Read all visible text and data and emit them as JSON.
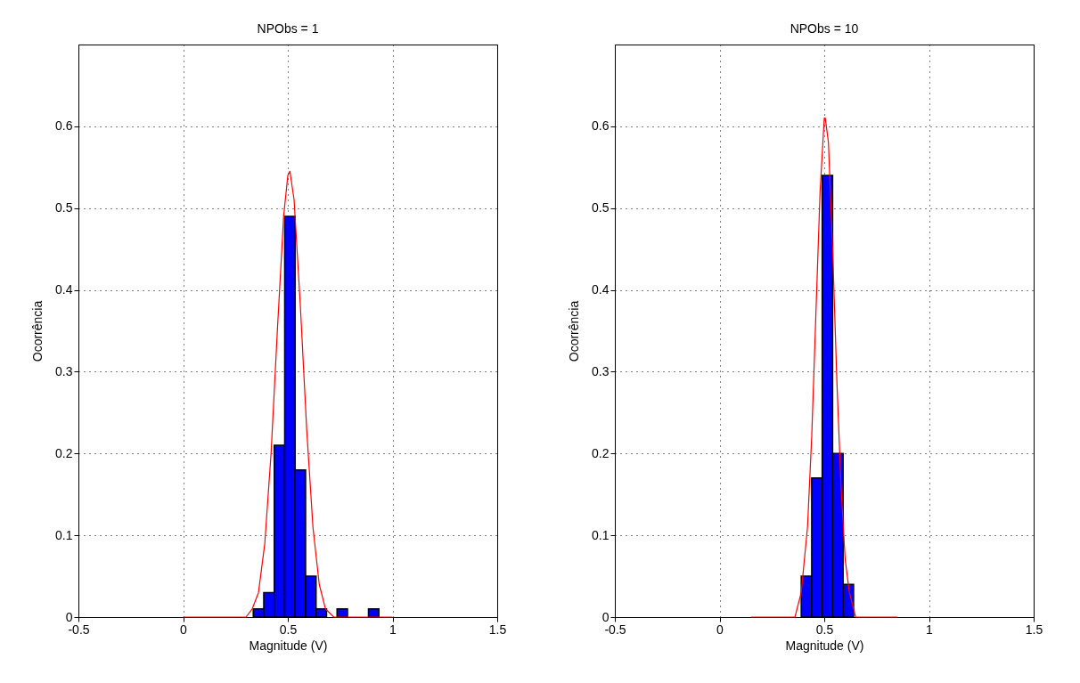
{
  "chart_data": [
    {
      "type": "histogram",
      "title": "NPObs = 1",
      "xlabel": "Magnitude (V)",
      "ylabel": "Ocorrência",
      "xlim": [
        -0.5,
        1.5
      ],
      "ylim": [
        0,
        0.7
      ],
      "xticks": [
        -0.5,
        0,
        0.5,
        1,
        1.5
      ],
      "yticks": [
        0,
        0.1,
        0.2,
        0.3,
        0.4,
        0.5,
        0.6
      ],
      "grid": true,
      "series": [
        {
          "color": "#0000ff",
          "bins": [
            0.335,
            0.385,
            0.435,
            0.485,
            0.535,
            0.585,
            0.635,
            0.685,
            0.735,
            0.785,
            0.835,
            0.885,
            0.935
          ],
          "values": [
            0.01,
            0.03,
            0.21,
            0.49,
            0.18,
            0.05,
            0.01,
            0,
            0.01,
            0,
            0,
            0.01
          ]
        },
        {
          "type": "line",
          "color": "#ff0000",
          "x": [
            0,
            0.2,
            0.3,
            0.33,
            0.36,
            0.39,
            0.42,
            0.45,
            0.48,
            0.5,
            0.51,
            0.53,
            0.56,
            0.59,
            0.62,
            0.65,
            0.68,
            0.72,
            0.8,
            1
          ],
          "values": [
            0,
            0,
            0,
            0.01,
            0.03,
            0.09,
            0.2,
            0.35,
            0.49,
            0.54,
            0.545,
            0.51,
            0.38,
            0.23,
            0.11,
            0.04,
            0.01,
            0,
            0,
            0
          ]
        }
      ]
    },
    {
      "type": "histogram",
      "title": "NPObs = 10",
      "xlabel": "Magnitude (V)",
      "ylabel": "Ocorrência",
      "xlim": [
        -0.5,
        1.5
      ],
      "ylim": [
        0,
        0.7
      ],
      "xticks": [
        -0.5,
        0,
        0.5,
        1,
        1.5
      ],
      "yticks": [
        0,
        0.1,
        0.2,
        0.3,
        0.4,
        0.5,
        0.6
      ],
      "grid": true,
      "series": [
        {
          "color": "#0000ff",
          "bins": [
            0.39,
            0.44,
            0.49,
            0.54,
            0.59,
            0.64
          ],
          "values": [
            0.05,
            0.17,
            0.54,
            0.2,
            0.04
          ]
        },
        {
          "type": "line",
          "color": "#ff0000",
          "x": [
            0.15,
            0.3,
            0.36,
            0.39,
            0.42,
            0.44,
            0.46,
            0.48,
            0.5,
            0.505,
            0.52,
            0.54,
            0.56,
            0.58,
            0.6,
            0.62,
            0.65,
            0.7,
            0.85
          ],
          "values": [
            0,
            0,
            0,
            0.03,
            0.11,
            0.22,
            0.37,
            0.52,
            0.61,
            0.61,
            0.58,
            0.45,
            0.29,
            0.16,
            0.07,
            0.03,
            0,
            0,
            0
          ]
        }
      ]
    }
  ]
}
